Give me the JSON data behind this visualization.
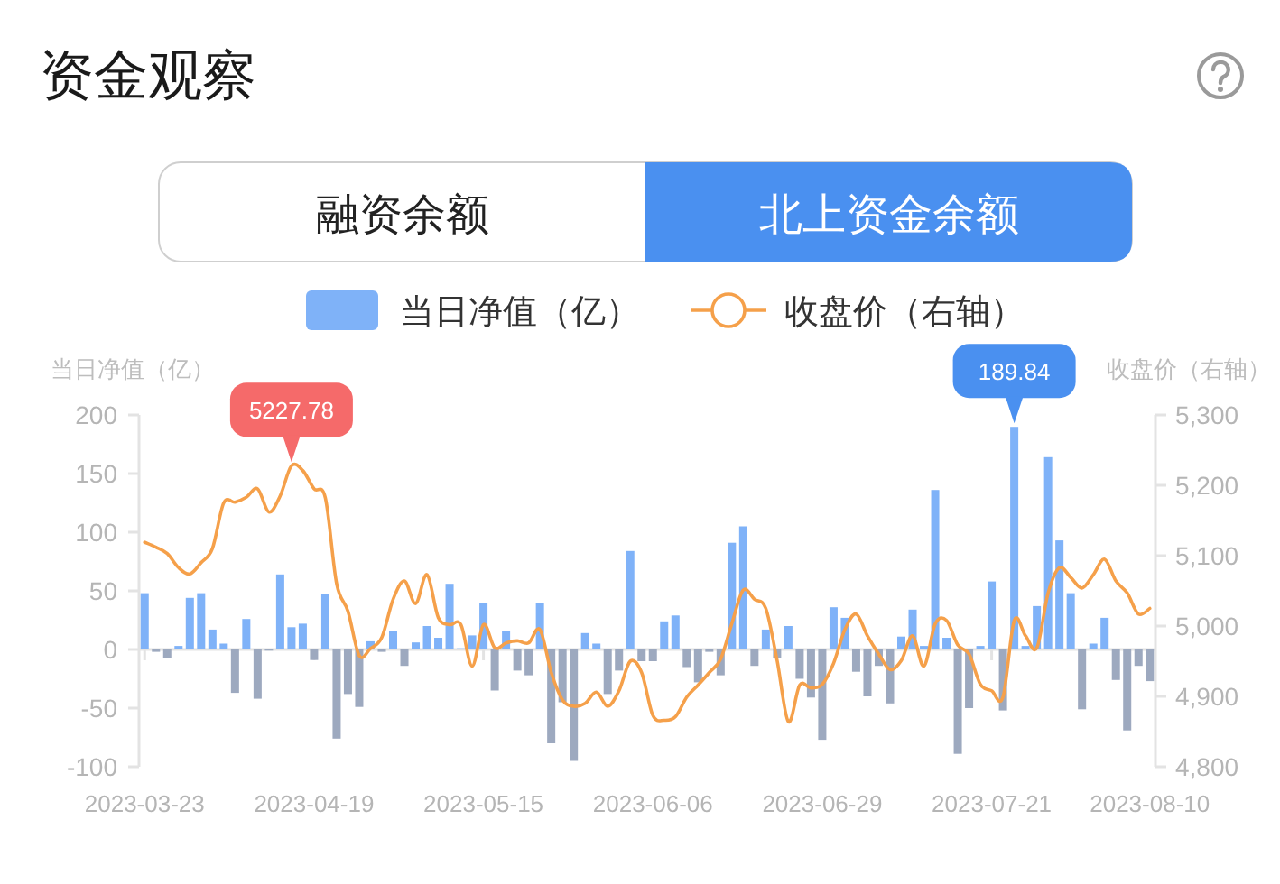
{
  "chart_data": {
    "type": "bar",
    "title": "资金观察",
    "legend": "top",
    "ylabel": "当日净值（亿）",
    "y2label": "收盘价（右轴）",
    "annotations": [
      "融资余额",
      "北上资金余额",
      "189.84",
      "5227.78"
    ],
    "categories": [
      "2023-03-23",
      null,
      null,
      null,
      null,
      null,
      null,
      null,
      null,
      null,
      null,
      null,
      null,
      null,
      null,
      "2023-04-19",
      null,
      null,
      null,
      null,
      null,
      null,
      null,
      null,
      null,
      null,
      null,
      null,
      null,
      null,
      "2023-05-15",
      null,
      null,
      null,
      null,
      null,
      null,
      null,
      null,
      null,
      null,
      null,
      null,
      null,
      null,
      "2023-06-06",
      null,
      null,
      null,
      null,
      null,
      null,
      null,
      null,
      null,
      null,
      null,
      null,
      null,
      null,
      "2023-06-29",
      null,
      null,
      null,
      null,
      null,
      null,
      null,
      null,
      null,
      null,
      null,
      null,
      null,
      null,
      "2023-07-21",
      null,
      null,
      null,
      null,
      null,
      null,
      null,
      null,
      null,
      null,
      null,
      null,
      null,
      "2023-08-10"
    ],
    "ylim": [
      -100,
      200
    ],
    "yticks": [
      -100,
      -50,
      0,
      50,
      100,
      150,
      200
    ],
    "y2lim": [
      4800,
      5300
    ],
    "y2ticks": [
      {
        "value": 4800,
        "label": "4,800"
      },
      {
        "value": 4900,
        "label": "4,900"
      },
      {
        "value": 5000,
        "label": "5,000"
      },
      {
        "value": 5100,
        "label": "5,100"
      },
      {
        "value": 5200,
        "label": "5,200"
      },
      {
        "value": 5300,
        "label": "5,300"
      }
    ],
    "series": [
      {
        "name": "当日净值（亿）",
        "color": "#7fb2f8",
        "values": [
          48,
          -2,
          -7,
          3,
          44,
          48,
          17,
          5,
          -37,
          26,
          -42,
          -1,
          64,
          19,
          22,
          -9,
          47,
          -76,
          -38,
          -49,
          7,
          -2,
          16,
          -14,
          6,
          20,
          10,
          56,
          1,
          12,
          40,
          -35,
          16,
          -18,
          -22,
          40,
          -80,
          -45,
          -95,
          14,
          5,
          -38,
          -18,
          84,
          -10,
          -10,
          24,
          29,
          -15,
          -28,
          -2,
          -22,
          91,
          105,
          -14,
          17,
          -7,
          20,
          -25,
          -41,
          -77,
          36,
          27,
          -19,
          -40,
          -14,
          -46,
          11,
          34,
          3,
          136,
          10,
          -89,
          -50,
          3,
          58,
          -52,
          189.84,
          3,
          37,
          164,
          93,
          48,
          -51,
          5,
          27,
          -26,
          -69,
          -14,
          -27
        ],
        "colors": [
          "#7fb2f8",
          "#9da9bf",
          "#9da9bf",
          "#7fb2f8",
          "#7fb2f8",
          "#7fb2f8",
          "#7fb2f8",
          "#7fb2f8",
          "#9da9bf",
          "#7fb2f8",
          "#9da9bf",
          "#9da9bf",
          "#7fb2f8",
          "#7fb2f8",
          "#7fb2f8",
          "#9da9bf",
          "#7fb2f8",
          "#9da9bf",
          "#9da9bf",
          "#9da9bf",
          "#7fb2f8",
          "#9da9bf",
          "#7fb2f8",
          "#9da9bf",
          "#7fb2f8",
          "#7fb2f8",
          "#7fb2f8",
          "#7fb2f8",
          "#7fb2f8",
          "#7fb2f8",
          "#7fb2f8",
          "#9da9bf",
          "#7fb2f8",
          "#9da9bf",
          "#9da9bf",
          "#7fb2f8",
          "#9da9bf",
          "#9da9bf",
          "#9da9bf",
          "#7fb2f8",
          "#7fb2f8",
          "#9da9bf",
          "#9da9bf",
          "#7fb2f8",
          "#9da9bf",
          "#9da9bf",
          "#7fb2f8",
          "#7fb2f8",
          "#9da9bf",
          "#9da9bf",
          "#9da9bf",
          "#9da9bf",
          "#7fb2f8",
          "#7fb2f8",
          "#9da9bf",
          "#7fb2f8",
          "#9da9bf",
          "#7fb2f8",
          "#9da9bf",
          "#9da9bf",
          "#9da9bf",
          "#7fb2f8",
          "#7fb2f8",
          "#9da9bf",
          "#9da9bf",
          "#9da9bf",
          "#9da9bf",
          "#7fb2f8",
          "#7fb2f8",
          "#7fb2f8",
          "#7fb2f8",
          "#7fb2f8",
          "#9da9bf",
          "#9da9bf",
          "#7fb2f8",
          "#7fb2f8",
          "#9da9bf",
          "#7fb2f8",
          "#7fb2f8",
          "#7fb2f8",
          "#7fb2f8",
          "#7fb2f8",
          "#7fb2f8",
          "#9da9bf",
          "#7fb2f8",
          "#7fb2f8",
          "#9da9bf",
          "#9da9bf",
          "#9da9bf",
          "#9da9bf"
        ]
      },
      {
        "name": "收盘价（右轴）",
        "type": "line",
        "axis": "y2",
        "color": "#f5a04a",
        "values": [
          5119,
          5112,
          5103,
          5083,
          5074,
          5090,
          5110,
          5175,
          5176,
          5183,
          5195,
          5162,
          5185,
          5227.78,
          5221,
          5195,
          5182,
          5060,
          5021,
          4958,
          4968,
          4984,
          5038,
          5064,
          5032,
          5073,
          5012,
          5002,
          5002,
          4943,
          5002,
          4969,
          4976,
          4979,
          4976,
          4995,
          4934,
          4895,
          4886,
          4890,
          4906,
          4886,
          4908,
          4950,
          4934,
          4873,
          4866,
          4871,
          4899,
          4916,
          4934,
          4953,
          5004,
          5051,
          5038,
          5025,
          4951,
          4864,
          4916,
          4912,
          4917,
          4947,
          4995,
          5017,
          4986,
          4960,
          4938,
          4951,
          4986,
          4943,
          5003,
          5008,
          4973,
          4960,
          4917,
          4908,
          4899,
          5008,
          4986,
          4969,
          5047,
          5083,
          5069,
          5054,
          5073,
          5095,
          5064,
          5047,
          5017,
          5025
        ]
      }
    ]
  }
}
